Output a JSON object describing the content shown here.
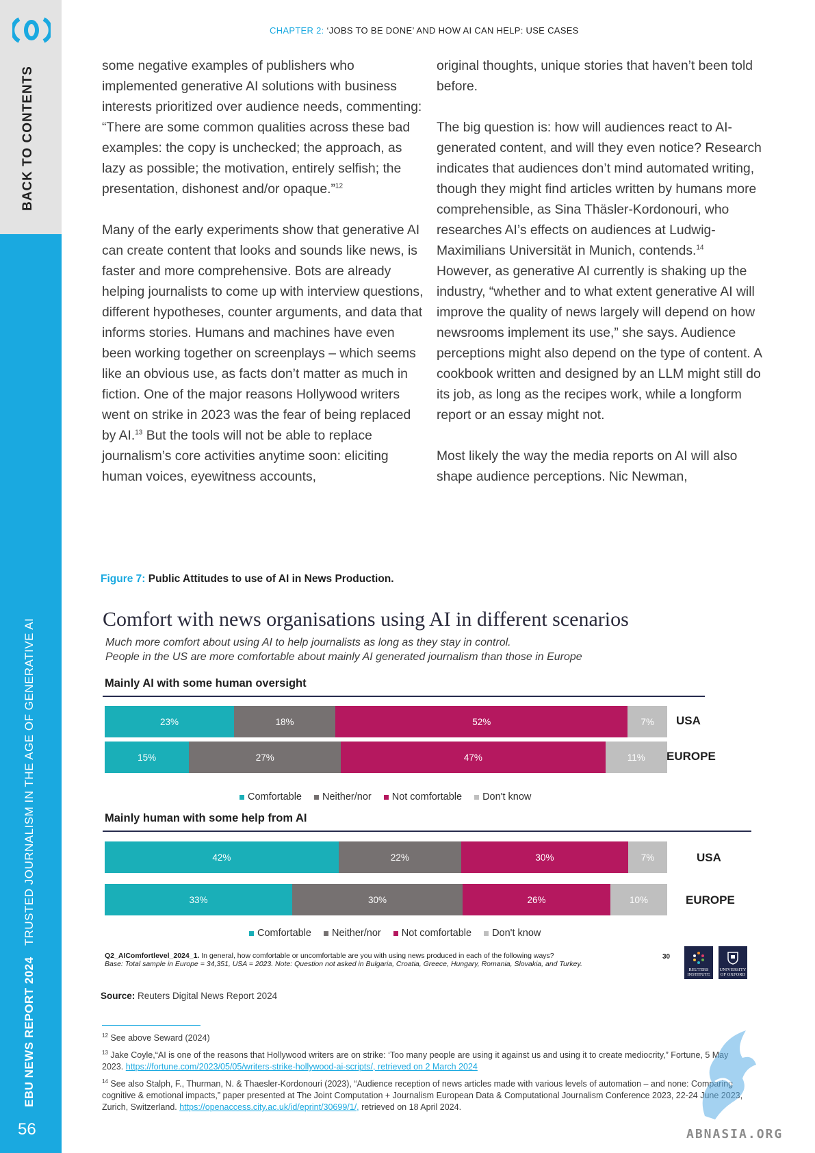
{
  "sidebar": {
    "back_label": "BACK TO CONTENTS",
    "report_label": "EBU NEWS REPORT 2024",
    "report_subtitle": "TRUSTED JOURNALISM IN THE AGE OF GENERATIVE AI",
    "page_number": "56",
    "logo_icon": "ebu-logo-icon",
    "accent_color": "#1aa9e0"
  },
  "header": {
    "chapter_prefix": "CHAPTER 2:",
    "chapter_title": "‘JOBS TO BE DONE’ AND HOW AI CAN HELP: USE CASES"
  },
  "body": {
    "left_p1_a": "some negative examples of publishers who implemented generative AI solutions with business interests prioritized over audience needs, commenting: “There are some common qualities across these bad examples: the copy is unchecked; the approach, as lazy as possible; the motivation, entirely selfish; the presentation, dishonest and/or opaque.”",
    "left_p1_sup": "12",
    "left_p2_a": "Many of the early experiments show that generative AI can create content that looks and sounds like news, is faster and more comprehensive. Bots are already helping journalists to come up with interview questions, different hypotheses, counter arguments, and data that informs stories. Humans and machines have even been working together on screenplays – which seems like an obvious use, as facts don’t matter as much in fiction. One of the major reasons Hollywood writers went on strike in 2023 was the fear of being replaced by AI.",
    "left_p2_sup": "13",
    "left_p2_b": " But the tools will not be able to replace journalism’s core activities anytime soon: eliciting human voices, eyewitness accounts,",
    "right_p1": "original thoughts, unique stories that haven’t been told before.",
    "right_p2_a": "The big question is: how will audiences react to AI-generated content, and will they even notice? Research indicates that audiences don’t mind automated writing, though they might find articles written by humans more comprehensible, as Sina Thäsler-Kordonouri, who researches AI’s effects on audiences at Ludwig-Maximilians Universität in Munich, contends.",
    "right_p2_sup": "14",
    "right_p2_b": " However, as generative AI currently is shaking up the industry, “whether and to what extent generative AI will improve the quality of news largely will depend on how newsrooms implement its use,” she says. Audience perceptions might also depend on the type of content. A cookbook written and designed by an LLM might still do its job, as long as the recipes work, while a longform report or an essay might not.",
    "right_p3": "Most likely the way the media reports on AI will also shape audience perceptions. Nic Newman,"
  },
  "figure": {
    "label": "Figure 7:",
    "caption": "Public Attitudes to use of AI in News Production."
  },
  "chart_data": [
    {
      "type": "bar",
      "title": "Comfort with news organisations using AI in different scenarios",
      "subtitle_1": "Much more comfort about using AI to help journalists as long as they stay in control.",
      "subtitle_2": "People in the US are more comfortable about mainly AI generated journalism than those in Europe",
      "section": "Mainly AI with some human oversight",
      "stacked": true,
      "orientation": "horizontal",
      "categories": [
        "USA",
        "EUROPE"
      ],
      "series": [
        {
          "name": "Comfortable",
          "color": "#1aafb8",
          "values": [
            23,
            15
          ]
        },
        {
          "name": "Neither/nor",
          "color": "#767171",
          "values": [
            18,
            27
          ]
        },
        {
          "name": "Not comfortable",
          "color": "#b5185f",
          "values": [
            52,
            47
          ]
        },
        {
          "name": "Don't know",
          "color": "#bfbfbf",
          "values": [
            7,
            11
          ]
        }
      ],
      "unit": "%"
    },
    {
      "type": "bar",
      "section": "Mainly human with some help from AI",
      "stacked": true,
      "orientation": "horizontal",
      "categories": [
        "USA",
        "EUROPE"
      ],
      "series": [
        {
          "name": "Comfortable",
          "color": "#1aafb8",
          "values": [
            42,
            33
          ]
        },
        {
          "name": "Neither/nor",
          "color": "#767171",
          "values": [
            22,
            30
          ]
        },
        {
          "name": "Not comfortable",
          "color": "#b5185f",
          "values": [
            30,
            26
          ]
        },
        {
          "name": "Don't know",
          "color": "#bfbfbf",
          "values": [
            7,
            10
          ]
        }
      ],
      "unit": "%"
    }
  ],
  "chart_footer": {
    "question_code": "Q2_AIComfortlevel_2024_1.",
    "question_text": " In general, how comfortable or uncomfortable are you with using news produced in each of the following ways?",
    "base_note": "Base: Total sample in Europe = 34,351, USA = 2023. Note: Question not asked in Bulgaria, Croatia, Greece, Hungary, Romania, Slovakia, and Turkey.",
    "page": "30",
    "logo_reuters": "REUTERS INSTITUTE",
    "logo_oxford": "UNIVERSITY OF OXFORD"
  },
  "source": {
    "label": "Source:",
    "text": " Reuters Digital News Report 2024"
  },
  "footnotes": [
    {
      "num": "12",
      "text": "See above Seward (2024)",
      "link": "",
      "after": ""
    },
    {
      "num": "13",
      "text": "Jake Coyle,“AI is one of the reasons that Hollywood writers are on strike: ‘Too many people are using it against us and using it to create mediocrity,” Fortune, 5 May 2023. ",
      "link": "https://fortune.com/2023/05/05/writers-strike-hollywood-ai-scripts/, retrieved on 2 March 2024",
      "after": ""
    },
    {
      "num": "14",
      "text": "See also Stalph, F., Thurman, N. & Thaesler-Kordonouri (2023), “Audience reception of news articles made with various levels of automation – and none: Comparing cognitive & emotional impacts,” paper presented at The Joint Computation + Journalism European Data & Computational Journalism Conference 2023, 22-24 June 2023, Zurich, Switzerland. ",
      "link": "https://openaccess.city.ac.uk/id/eprint/30699/1/,",
      "after": " retrieved on 18 April 2024."
    }
  ],
  "watermark": {
    "text": "ABNASIA.ORG",
    "icon": "griffin-logo-icon"
  }
}
